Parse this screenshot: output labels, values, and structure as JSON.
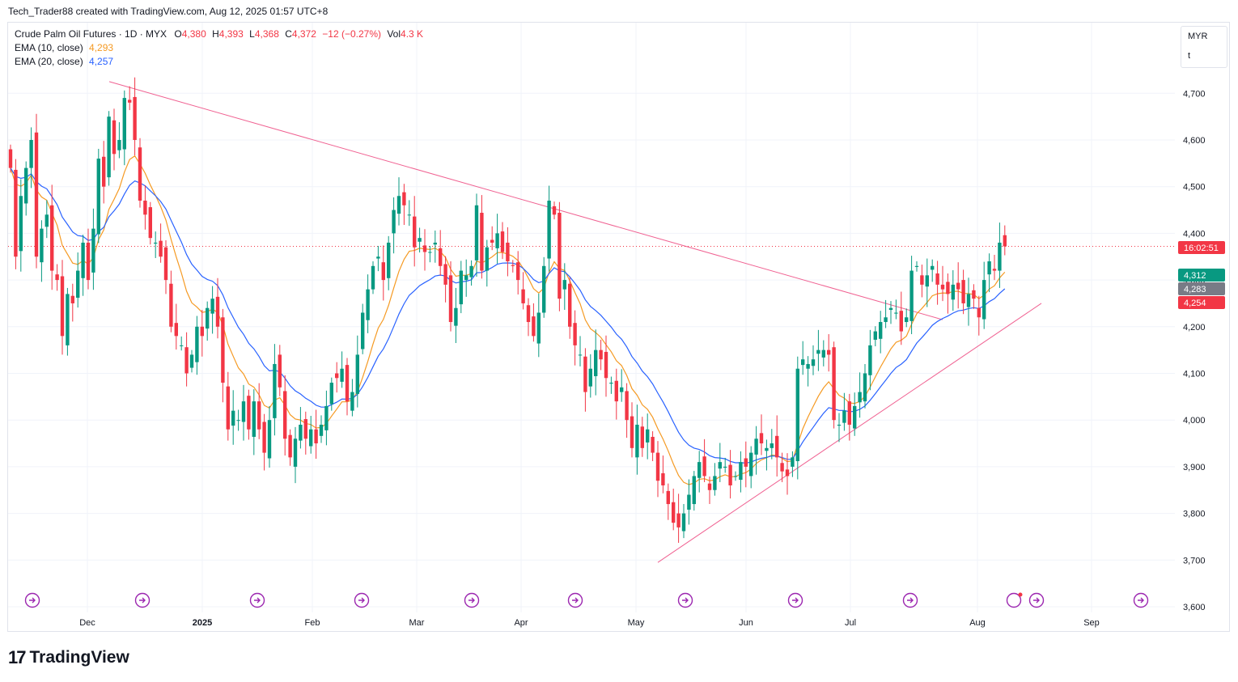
{
  "header": {
    "attribution": "Tech_Trader88 created with TradingView.com, Aug 12, 2025 01:57 UTC+8"
  },
  "legend": {
    "symbol": "Crude Palm Oil Futures · 1D · MYX",
    "o_label": "O",
    "o_value": "4,380",
    "h_label": "H",
    "h_value": "4,393",
    "l_label": "L",
    "l_value": "4,368",
    "c_label": "C",
    "c_value": "4,372",
    "change": "−12 (−0.27%)",
    "vol_label": "Vol",
    "vol_value": "4.3 K",
    "ema10_label": "EMA (10, close)",
    "ema10_value": "4,293",
    "ema20_label": "EMA (20, close)",
    "ema20_value": "4,257"
  },
  "currency_box": {
    "currency": "MYR",
    "unit": "t"
  },
  "footer": {
    "logo_text": "TradingView"
  },
  "colors": {
    "up": "#089981",
    "down": "#f23645",
    "ema10": "#f59a23",
    "ema20": "#2962ff",
    "trendline": "#f06292",
    "grid": "#f0f3fa"
  },
  "chart_data": {
    "type": "candlestick",
    "ylim": [
      3600,
      4720
    ],
    "y_ticks": [
      "3,600",
      "3,700",
      "3,800",
      "3,900",
      "4,000",
      "4,100",
      "4,200",
      "4,300",
      "4,400",
      "4,500",
      "4,600",
      "4,700"
    ],
    "x_ticks": [
      "Dec",
      "2025",
      "Feb",
      "Mar",
      "Apr",
      "May",
      "Jun",
      "Jul",
      "Aug",
      "Sep"
    ],
    "price_labels": {
      "countdown": "16:02:51",
      "ema10": "4,312",
      "ema_mid": "4,283",
      "ema20": "4,254"
    },
    "last_close": 4372,
    "closes": [
      4540,
      4350,
      4480,
      4540,
      4600,
      4350,
      4410,
      4440,
      4320,
      4300,
      4180,
      4270,
      4250,
      4320,
      4380,
      4300,
      4410,
      4560,
      4500,
      4650,
      4570,
      4600,
      4690,
      4680,
      4600,
      4470,
      4440,
      4390,
      4380,
      4350,
      4300,
      4200,
      4180,
      4160,
      4100,
      4140,
      4200,
      4180,
      4240,
      4260,
      4200,
      4080,
      3980,
      4020,
      4000,
      4040,
      3980,
      4040,
      3980,
      3930,
      4000,
      4120,
      4070,
      3960,
      3920,
      3960,
      3990,
      3960,
      3980,
      3950,
      3990,
      4030,
      4080,
      4090,
      4110,
      4040,
      4060,
      4140,
      4230,
      4280,
      4330,
      4350,
      4300,
      4380,
      4450,
      4480,
      4460,
      4440,
      4370,
      4390,
      4360,
      4360,
      4380,
      4330,
      4290,
      4210,
      4240,
      4320,
      4310,
      4330,
      4460,
      4320,
      4370,
      4380,
      4400,
      4360,
      4340,
      4330,
      4300,
      4250,
      4210,
      4180,
      4230,
      4330,
      4470,
      4440,
      4260,
      4300,
      4200,
      4160,
      4140,
      4060,
      4110,
      4150,
      4130,
      4090,
      4080,
      4040,
      4070,
      4000,
      3940,
      3990,
      3940,
      3980,
      3930,
      3870,
      3860,
      3820,
      3780,
      3770,
      3800,
      3840,
      3880,
      3910,
      3880,
      3850,
      3880,
      3910,
      3900,
      3860,
      3880,
      3910,
      3900,
      3930,
      3960,
      3950,
      3940,
      3950,
      3920,
      3890,
      3880,
      3920,
      4110,
      4130,
      4120,
      4130,
      4150,
      4150,
      4140,
      4000,
      3990,
      4020,
      3990,
      4030,
      4060,
      4100,
      4160,
      4190,
      4210,
      4220,
      4240,
      4230,
      4190,
      4220,
      4320,
      4330,
      4290,
      4310,
      4330,
      4290,
      4280,
      4270,
      4290,
      4280,
      4250,
      4270,
      4260,
      4220,
      4300,
      4340,
      4320,
      4380,
      4372
    ]
  }
}
